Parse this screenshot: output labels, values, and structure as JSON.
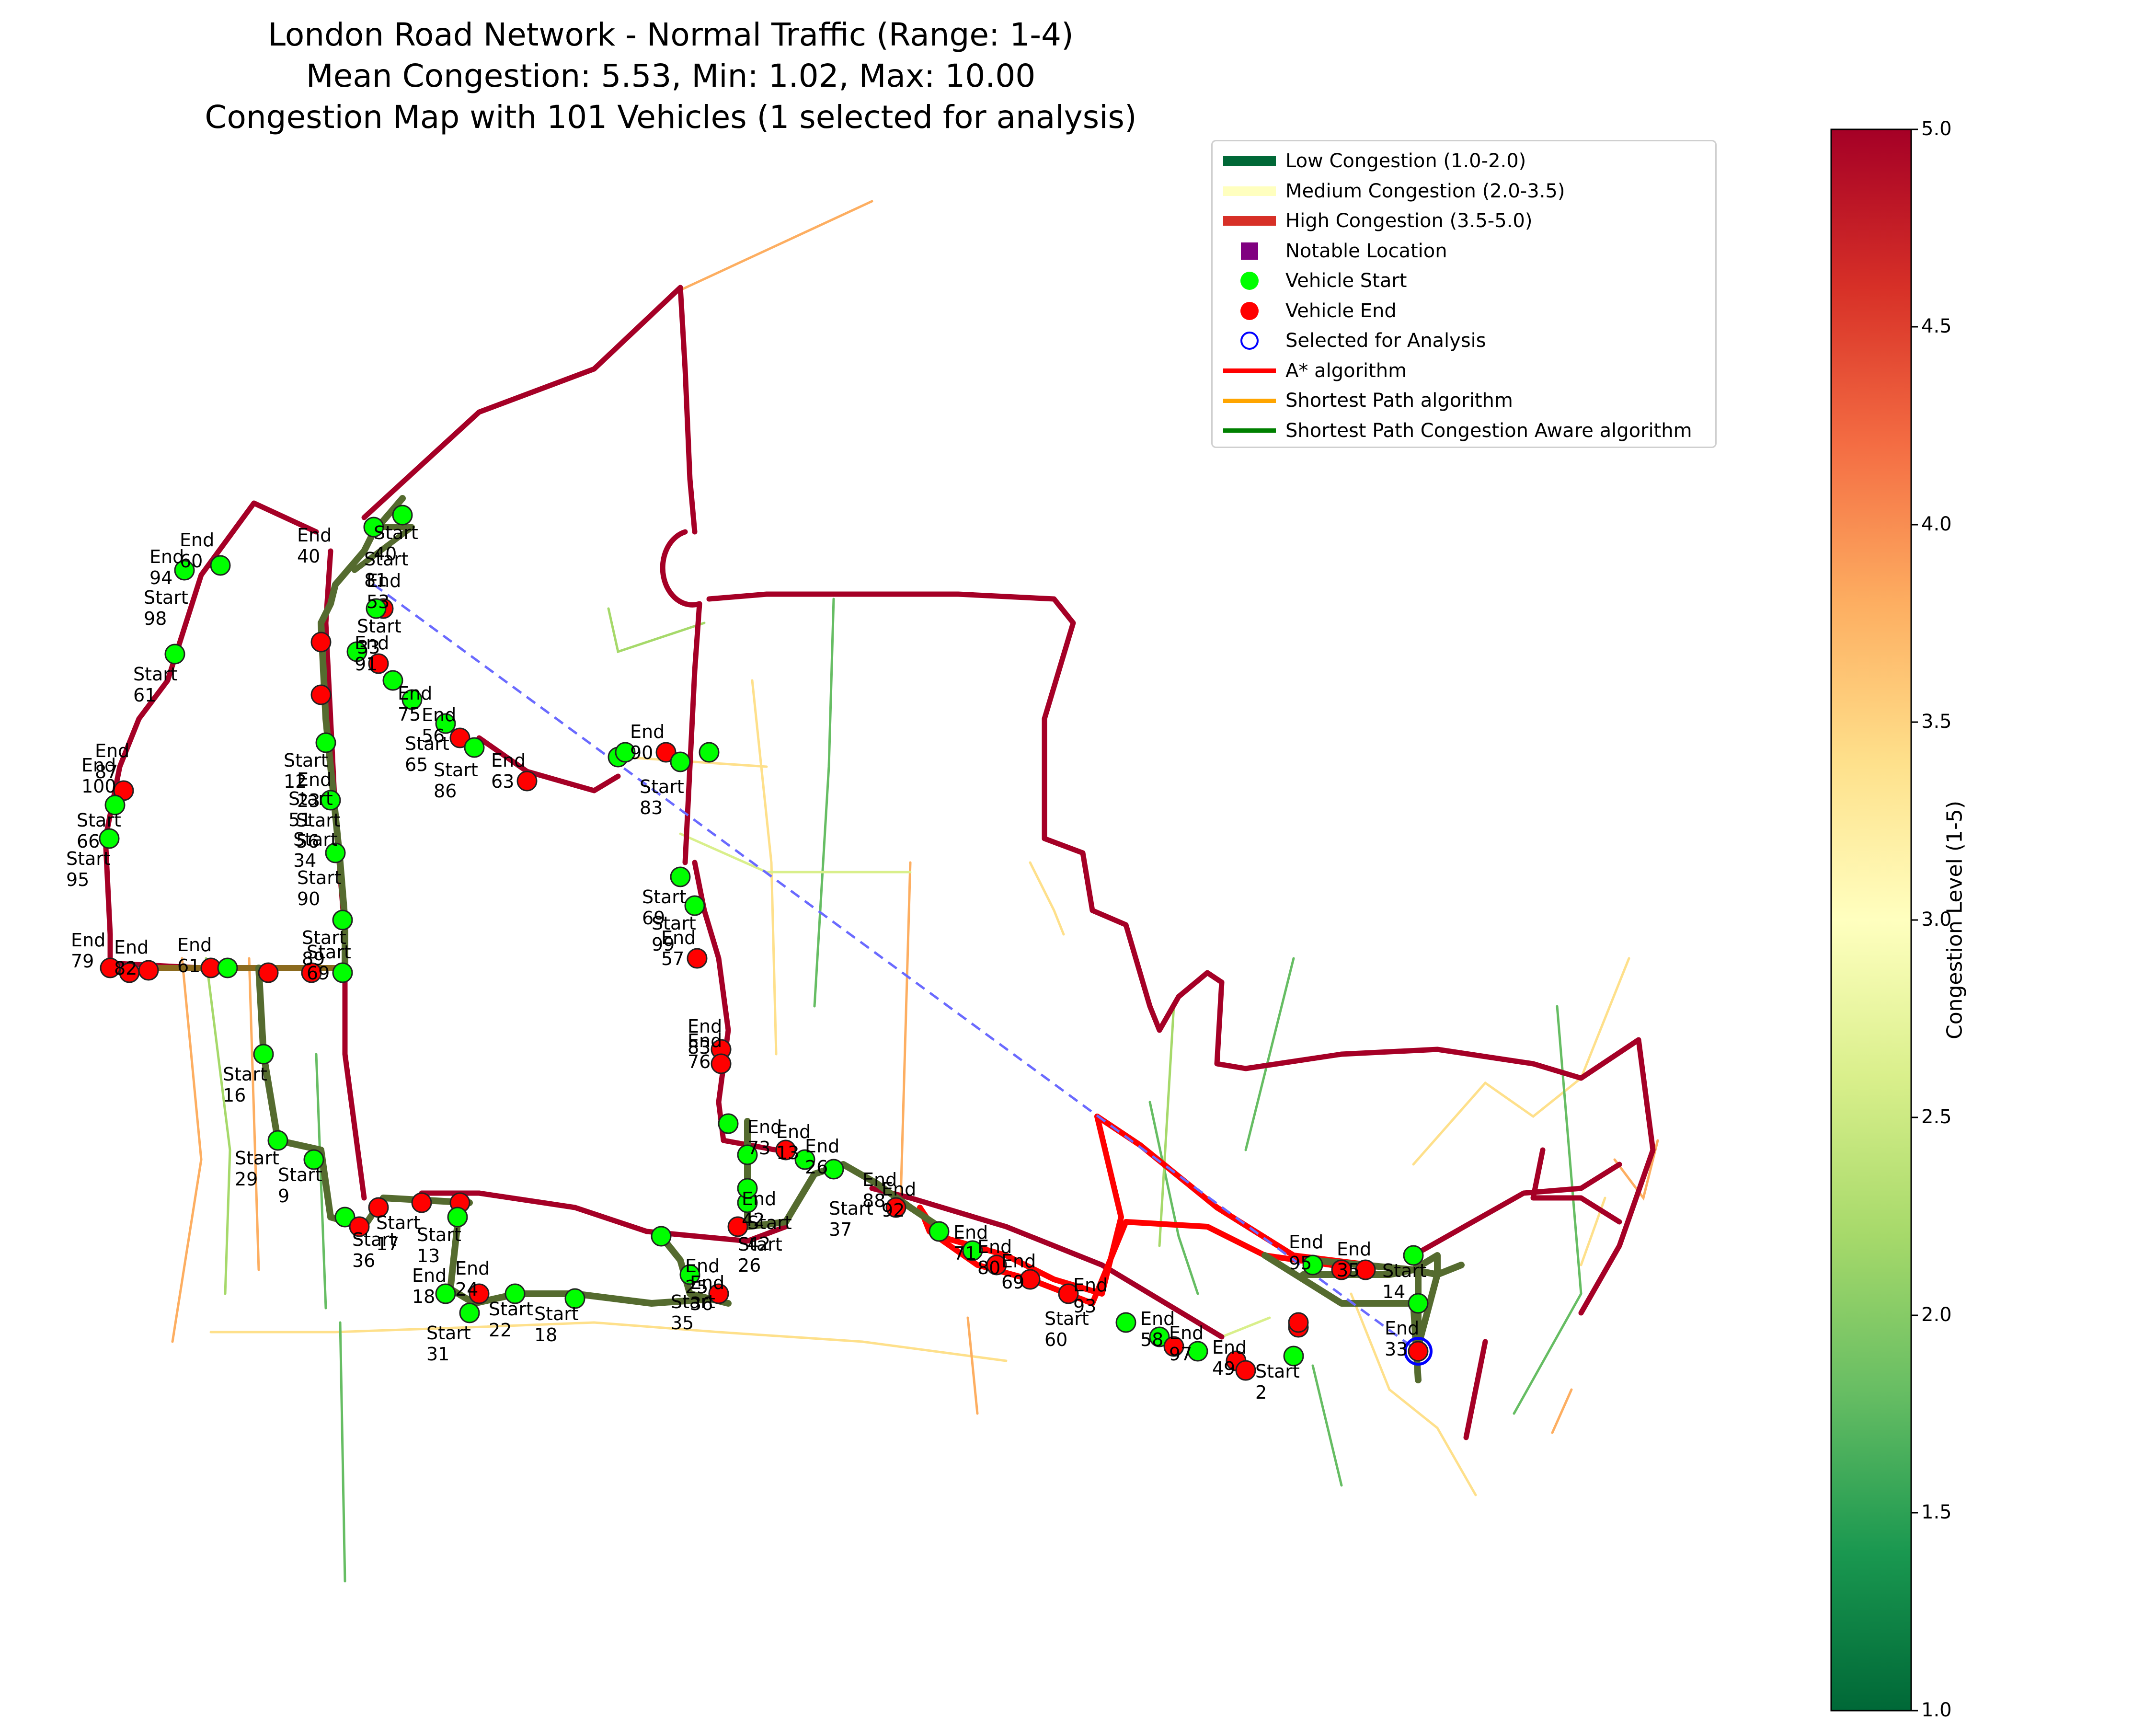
{
  "title": {
    "line1": "London Road Network - Normal Traffic (Range: 1-4)",
    "line2": "Mean Congestion: 5.53, Min: 1.02, Max: 10.00",
    "line3": "Congestion Map with 101 Vehicles (1 selected for analysis)"
  },
  "legend": {
    "low": "Low Congestion (1.0-2.0)",
    "medium": "Medium Congestion (2.0-3.5)",
    "high": "High Congestion (3.5-5.0)",
    "notable": "Notable Location",
    "start": "Vehicle Start",
    "end": "Vehicle End",
    "selected": "Selected for Analysis",
    "astar": "A* algorithm",
    "shortest": "Shortest Path algorithm",
    "aware": "Shortest Path Congestion Aware algorithm"
  },
  "colorbar": {
    "label": "Congestion Level (1-5)",
    "ticks": [
      "1.0",
      "1.5",
      "2.0",
      "2.5",
      "3.0",
      "3.5",
      "4.0",
      "4.5",
      "5.0"
    ],
    "range": [
      1.0,
      5.0
    ],
    "colors": [
      "#006837",
      "#1a9850",
      "#66bd63",
      "#a6d96a",
      "#d9ef8b",
      "#ffffbf",
      "#fee08b",
      "#fdae61",
      "#f46d43",
      "#d73027",
      "#a50026"
    ]
  },
  "colors": {
    "low": "#006837",
    "medium": "#ffffbf",
    "high": "#d73027",
    "major_road": "#a50026",
    "notable": "#800080",
    "start": "#00ff00",
    "end": "#ff0000",
    "selected": "#0000ff",
    "astar": "#ff0000",
    "shortest": "#ffa500",
    "aware": "#008000"
  },
  "map_labels": [
    "End 60",
    "End 94",
    "Start 98",
    "Start 61",
    "End 87",
    "End 100",
    "Start 66",
    "Start 95",
    "End 79",
    "End 82",
    "End 61",
    "Start 16",
    "Start 29",
    "Start 9",
    "Start 36",
    "Start 17",
    "Start 13",
    "End 18",
    "End 24",
    "Start 22",
    "Start 18",
    "Start 31",
    "Start 12",
    "End 23",
    "Start 51",
    "Start 56",
    "Start 34",
    "Start 90",
    "Start 89",
    "Start 69",
    "End 40",
    "Start 40",
    "Start 81",
    "End 53",
    "Start 33",
    "End 91",
    "End 75",
    "End 56",
    "Start 65",
    "Start 86",
    "End 63",
    "End 90",
    "Start 83",
    "Start 69",
    "Start 99",
    "End 57",
    "End 83",
    "End 76",
    "End 73",
    "End 26",
    "Start 42",
    "Start 26",
    "End 25",
    "End 36",
    "Start 35",
    "End 71",
    "End 80",
    "End 69",
    "End 93",
    "Start 60",
    "End 58",
    "End 97",
    "End 49",
    "Start 2",
    "End 95",
    "End 35",
    "Start 14",
    "End 33",
    "End 42",
    "End 13",
    "End 88",
    "End 92",
    "Start 37"
  ]
}
